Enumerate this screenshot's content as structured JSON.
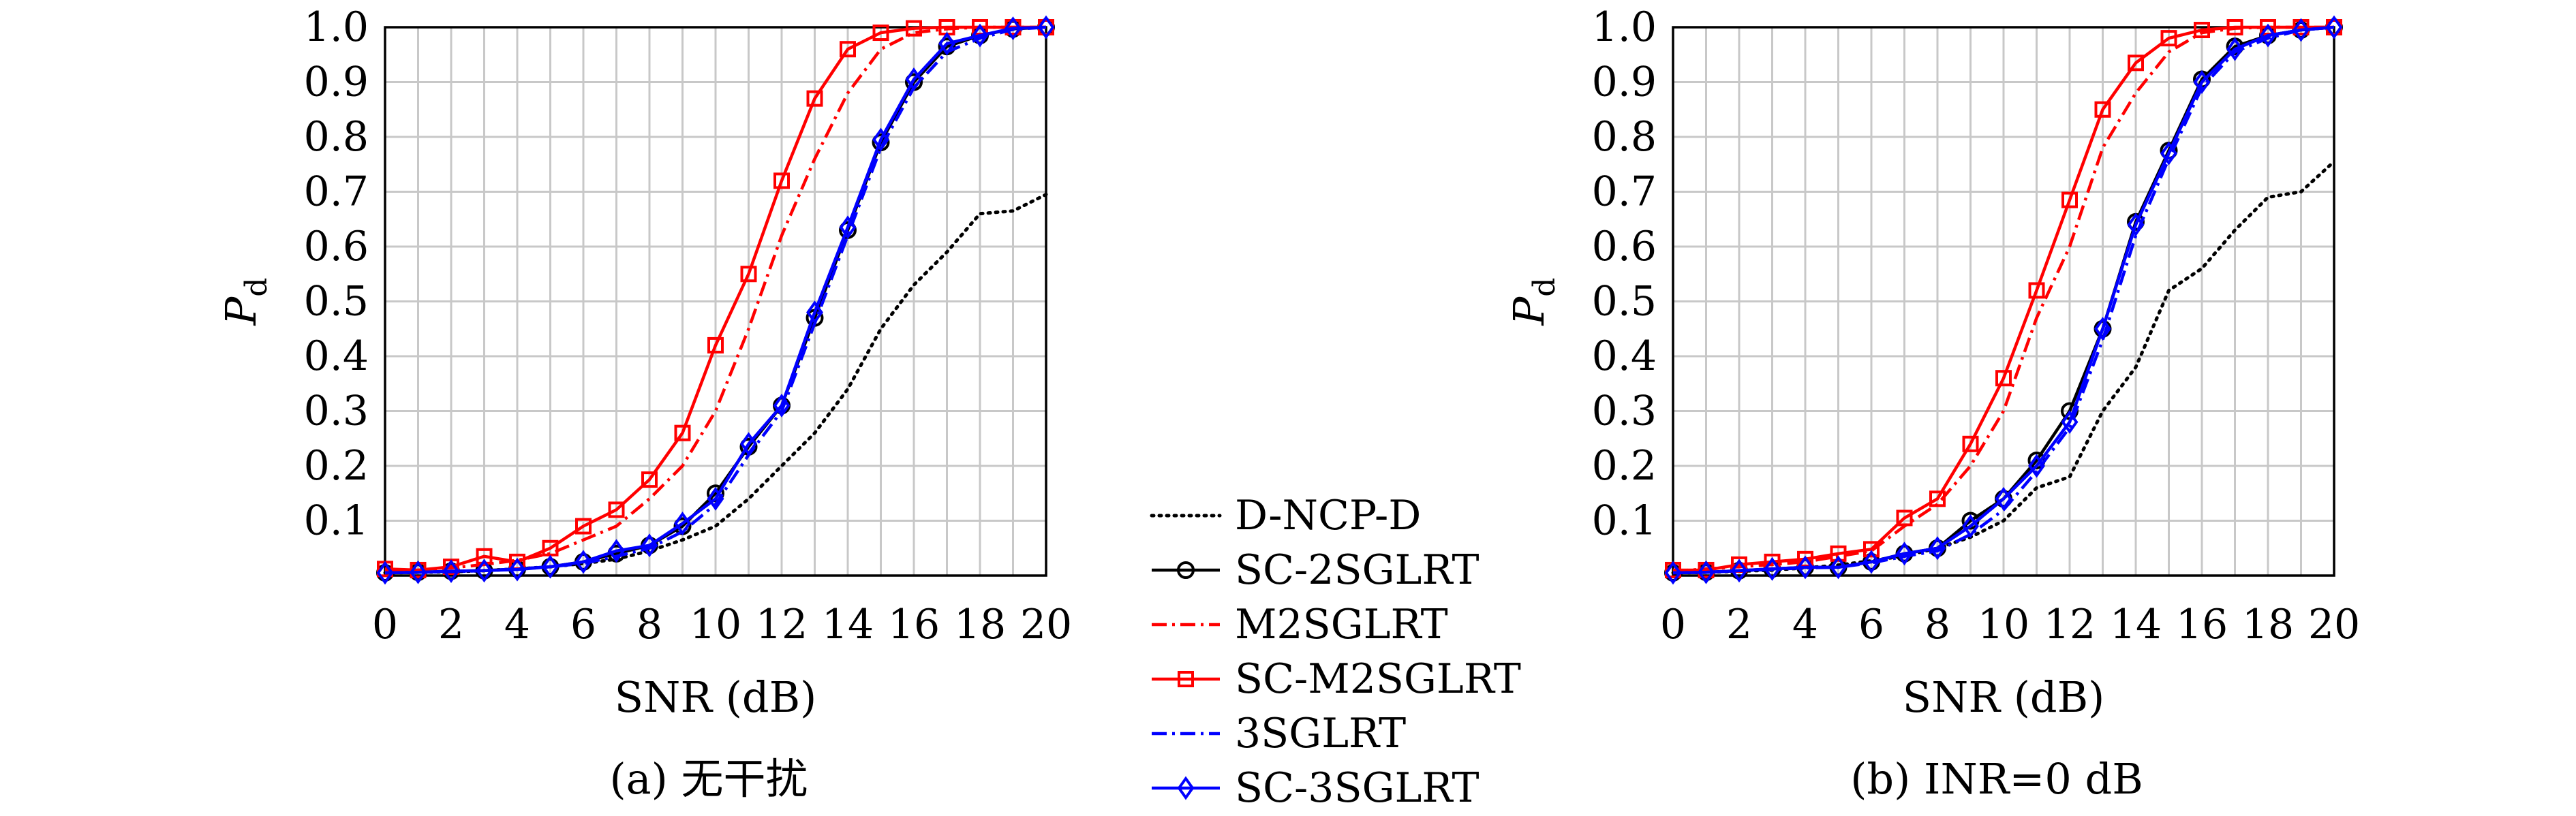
{
  "panels": [
    {
      "caption": "(a) 无干扰",
      "chart_data": {
        "type": "line",
        "xlabel": "SNR (dB)",
        "ylabel_main": "P",
        "ylabel_sub": "d",
        "xlim": [
          0,
          20
        ],
        "ylim": [
          0,
          1
        ],
        "xticks": [
          0,
          2,
          4,
          6,
          8,
          10,
          12,
          14,
          16,
          18,
          20
        ],
        "yticks": [
          0.1,
          0.2,
          0.3,
          0.4,
          0.5,
          0.6,
          0.7,
          0.8,
          0.9,
          1.0
        ],
        "grid": true,
        "x": [
          0,
          1,
          2,
          3,
          4,
          5,
          6,
          7,
          8,
          9,
          10,
          11,
          12,
          13,
          14,
          15,
          16,
          17,
          18,
          19,
          20
        ],
        "series": [
          {
            "name": "D-NCP-D",
            "color": "#000000",
            "dash": "dotted",
            "marker": "none",
            "values": [
              0.005,
              0.006,
              0.007,
              0.009,
              0.012,
              0.016,
              0.022,
              0.03,
              0.045,
              0.065,
              0.09,
              0.14,
              0.2,
              0.26,
              0.34,
              0.45,
              0.53,
              0.59,
              0.66,
              0.665,
              0.695
            ]
          },
          {
            "name": "SC-2SGLRT",
            "color": "#000000",
            "dash": "solid",
            "marker": "circle",
            "values": [
              0.005,
              0.006,
              0.008,
              0.009,
              0.012,
              0.016,
              0.025,
              0.04,
              0.055,
              0.09,
              0.15,
              0.235,
              0.31,
              0.47,
              0.63,
              0.79,
              0.9,
              0.965,
              0.985,
              0.997,
              1.0
            ]
          },
          {
            "name": "M2SGLRT",
            "color": "#ff0000",
            "dash": "dashdot",
            "marker": "none",
            "values": [
              0.008,
              0.01,
              0.014,
              0.02,
              0.028,
              0.04,
              0.065,
              0.09,
              0.14,
              0.2,
              0.3,
              0.45,
              0.62,
              0.76,
              0.88,
              0.96,
              0.99,
              0.997,
              1.0,
              1.0,
              1.0
            ]
          },
          {
            "name": "SC-M2SGLRT",
            "color": "#ff0000",
            "dash": "solid",
            "marker": "square",
            "values": [
              0.012,
              0.01,
              0.016,
              0.035,
              0.025,
              0.05,
              0.09,
              0.12,
              0.175,
              0.26,
              0.42,
              0.55,
              0.72,
              0.87,
              0.96,
              0.99,
              0.998,
              1.0,
              1.0,
              1.0,
              1.0
            ]
          },
          {
            "name": "3SGLRT",
            "color": "#0000ff",
            "dash": "dashdot",
            "marker": "none",
            "values": [
              0.005,
              0.006,
              0.007,
              0.009,
              0.012,
              0.016,
              0.022,
              0.035,
              0.05,
              0.08,
              0.13,
              0.22,
              0.3,
              0.46,
              0.62,
              0.78,
              0.89,
              0.955,
              0.98,
              0.996,
              1.0
            ]
          },
          {
            "name": "SC-3SGLRT",
            "color": "#0000ff",
            "dash": "solid",
            "marker": "diamond",
            "values": [
              0.005,
              0.006,
              0.008,
              0.009,
              0.011,
              0.016,
              0.025,
              0.045,
              0.055,
              0.095,
              0.14,
              0.24,
              0.31,
              0.48,
              0.635,
              0.795,
              0.905,
              0.97,
              0.985,
              0.998,
              1.0
            ]
          }
        ]
      }
    },
    {
      "caption": "(b) INR=0 dB",
      "chart_data": {
        "type": "line",
        "xlabel": "SNR (dB)",
        "ylabel_main": "P",
        "ylabel_sub": "d",
        "xlim": [
          0,
          20
        ],
        "ylim": [
          0,
          1
        ],
        "xticks": [
          0,
          2,
          4,
          6,
          8,
          10,
          12,
          14,
          16,
          18,
          20
        ],
        "yticks": [
          0.1,
          0.2,
          0.3,
          0.4,
          0.5,
          0.6,
          0.7,
          0.8,
          0.9,
          1.0
        ],
        "grid": true,
        "x": [
          0,
          1,
          2,
          3,
          4,
          5,
          6,
          7,
          8,
          9,
          10,
          11,
          12,
          13,
          14,
          15,
          16,
          17,
          18,
          19,
          20
        ],
        "series": [
          {
            "name": "D-NCP-D",
            "color": "#000000",
            "dash": "dotted",
            "marker": "none",
            "values": [
              0.005,
              0.006,
              0.008,
              0.01,
              0.014,
              0.019,
              0.027,
              0.036,
              0.05,
              0.07,
              0.1,
              0.16,
              0.18,
              0.3,
              0.38,
              0.52,
              0.56,
              0.63,
              0.69,
              0.7,
              0.755
            ]
          },
          {
            "name": "SC-2SGLRT",
            "color": "#000000",
            "dash": "solid",
            "marker": "circle",
            "values": [
              0.005,
              0.006,
              0.009,
              0.012,
              0.015,
              0.015,
              0.025,
              0.04,
              0.05,
              0.1,
              0.14,
              0.21,
              0.3,
              0.45,
              0.645,
              0.775,
              0.905,
              0.965,
              0.985,
              0.995,
              1.0
            ]
          },
          {
            "name": "M2SGLRT",
            "color": "#ff0000",
            "dash": "dashdot",
            "marker": "none",
            "values": [
              0.008,
              0.012,
              0.016,
              0.02,
              0.025,
              0.035,
              0.045,
              0.09,
              0.13,
              0.2,
              0.3,
              0.47,
              0.6,
              0.78,
              0.88,
              0.955,
              0.99,
              0.998,
              1.0,
              1.0,
              1.0
            ]
          },
          {
            "name": "SC-M2SGLRT",
            "color": "#ff0000",
            "dash": "solid",
            "marker": "square",
            "values": [
              0.01,
              0.01,
              0.02,
              0.025,
              0.03,
              0.04,
              0.048,
              0.105,
              0.14,
              0.24,
              0.36,
              0.52,
              0.685,
              0.85,
              0.935,
              0.98,
              0.995,
              1.0,
              1.0,
              1.0,
              1.0
            ]
          },
          {
            "name": "3SGLRT",
            "color": "#0000ff",
            "dash": "dashdot",
            "marker": "none",
            "values": [
              0.005,
              0.006,
              0.009,
              0.011,
              0.014,
              0.015,
              0.023,
              0.035,
              0.045,
              0.075,
              0.12,
              0.19,
              0.27,
              0.43,
              0.62,
              0.76,
              0.89,
              0.955,
              0.98,
              0.995,
              1.0
            ]
          },
          {
            "name": "SC-3SGLRT",
            "color": "#0000ff",
            "dash": "solid",
            "marker": "diamond",
            "values": [
              0.005,
              0.006,
              0.009,
              0.012,
              0.015,
              0.015,
              0.025,
              0.04,
              0.05,
              0.09,
              0.14,
              0.2,
              0.28,
              0.45,
              0.64,
              0.77,
              0.9,
              0.96,
              0.985,
              0.995,
              1.0
            ]
          }
        ]
      }
    }
  ],
  "legend": {
    "placement": "bottom-center",
    "entries": [
      {
        "label": "D-NCP-D",
        "color": "#000000",
        "dash": "dotted",
        "marker": "none"
      },
      {
        "label": "SC-2SGLRT",
        "color": "#000000",
        "dash": "solid",
        "marker": "circle"
      },
      {
        "label": "M2SGLRT",
        "color": "#ff0000",
        "dash": "dashdot",
        "marker": "none"
      },
      {
        "label": "SC-M2SGLRT",
        "color": "#ff0000",
        "dash": "solid",
        "marker": "square"
      },
      {
        "label": "3SGLRT",
        "color": "#0000ff",
        "dash": "dashdot",
        "marker": "none"
      },
      {
        "label": "SC-3SGLRT",
        "color": "#0000ff",
        "dash": "solid",
        "marker": "diamond"
      }
    ]
  }
}
